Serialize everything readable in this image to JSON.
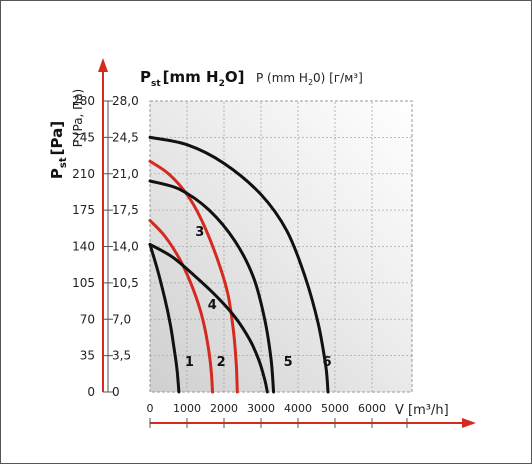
{
  "chart_data": {
    "type": "line",
    "title": "",
    "ylabel_left_main": "P",
    "ylabel_left_main_sub": "st",
    "ylabel_left_unit": "[Pa]",
    "ylabel_left_alt": "P (Pa, Па)",
    "ylabel_inner_main": "P",
    "ylabel_inner_main_sub": "st",
    "ylabel_inner_unit": "[mm H",
    "ylabel_inner_unit_sub": "2",
    "ylabel_inner_unit_end": "O]",
    "ylabel_inner_alt": "P (mm H",
    "ylabel_inner_alt_sub": "2",
    "ylabel_inner_alt_end": "0) [г/м³]",
    "xlabel": "V [m³/h]",
    "xlim": [
      0,
      7000
    ],
    "ylim": [
      0,
      280
    ],
    "x_ticks": [
      "0",
      "1000",
      "2000",
      "3000",
      "4000",
      "5000",
      "6000"
    ],
    "x_tick_values": [
      0,
      1000,
      2000,
      3000,
      4000,
      5000,
      6000
    ],
    "y_ticks_pa": [
      "0",
      "35",
      "70",
      "105",
      "140",
      "175",
      "210",
      "245",
      "280"
    ],
    "y_ticks_mm": [
      "0",
      "3,5",
      "7,0",
      "10,5",
      "14,0",
      "17,5",
      "21,0",
      "24,5",
      "28,0"
    ],
    "y_tick_values": [
      0,
      35,
      70,
      105,
      140,
      175,
      210,
      245,
      280
    ],
    "grid": true,
    "series": [
      {
        "name": "1",
        "color": "#111111",
        "label_at": [
          780,
          25
        ],
        "x": [
          0,
          200,
          400,
          550,
          650,
          720,
          760,
          780
        ],
        "y": [
          142,
          118,
          90,
          65,
          42,
          25,
          10,
          0
        ]
      },
      {
        "name": "2",
        "color": "#d42a20",
        "label_at": [
          1640,
          25
        ],
        "x": [
          0,
          400,
          800,
          1100,
          1350,
          1500,
          1600,
          1660,
          1690
        ],
        "y": [
          165,
          150,
          128,
          105,
          80,
          58,
          37,
          18,
          0
        ]
      },
      {
        "name": "3",
        "color": "#d42a20",
        "label_at": [
          1060,
          150
        ],
        "x": [
          0,
          500,
          1000,
          1400,
          1800,
          2100,
          2250,
          2330,
          2360
        ],
        "y": [
          222,
          210,
          190,
          165,
          130,
          95,
          60,
          28,
          0
        ]
      },
      {
        "name": "4",
        "color": "#111111",
        "label_at": [
          1400,
          80
        ],
        "x": [
          0,
          600,
          1200,
          1800,
          2300,
          2700,
          2950,
          3100,
          3170
        ],
        "y": [
          142,
          130,
          112,
          92,
          72,
          50,
          30,
          12,
          0
        ]
      },
      {
        "name": "5",
        "color": "#111111",
        "label_at": [
          3450,
          25
        ],
        "x": [
          0,
          800,
          1600,
          2300,
          2800,
          3100,
          3270,
          3340
        ],
        "y": [
          203,
          195,
          175,
          145,
          110,
          70,
          32,
          0
        ]
      },
      {
        "name": "6",
        "color": "#111111",
        "label_at": [
          4500,
          25
        ],
        "x": [
          0,
          1000,
          2000,
          3000,
          3700,
          4200,
          4550,
          4750,
          4810
        ],
        "y": [
          245,
          238,
          220,
          190,
          155,
          110,
          65,
          25,
          0
        ]
      }
    ]
  }
}
